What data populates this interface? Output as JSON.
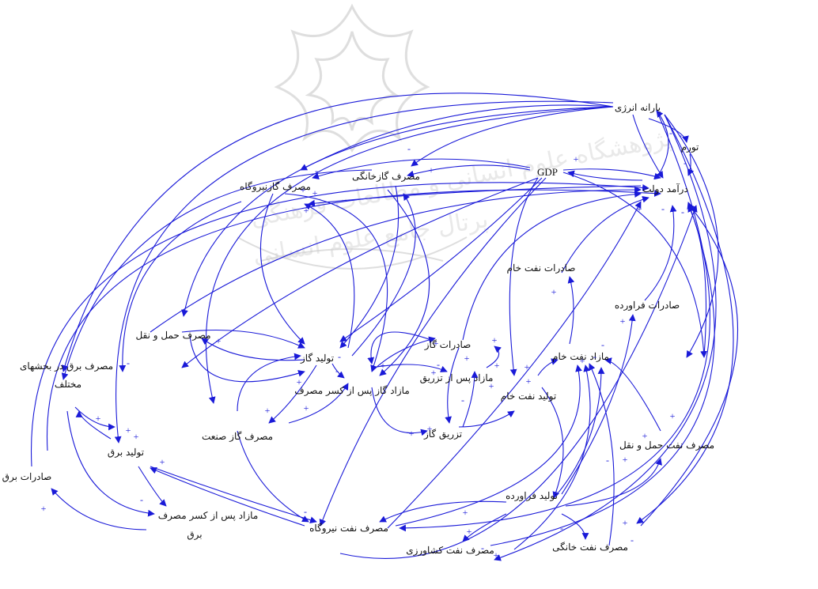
{
  "diagram": {
    "type": "causal-loop",
    "watermark": {
      "line1": "پژوهشگاه علوم انسانی و مطالعات فرهنگی",
      "line2": "پرتال جامع علوم انسانی"
    },
    "nodes": [
      {
        "id": "subsidy",
        "label": "یارانه انرژی"
      },
      {
        "id": "inflation",
        "label": "تورم"
      },
      {
        "id": "gdp",
        "label": "GDP"
      },
      {
        "id": "revenue",
        "label": "درآمد دولت"
      },
      {
        "id": "gas_power",
        "label": "مصرف گازنیروگاه"
      },
      {
        "id": "gas_home",
        "label": "مصرف گازخانگی"
      },
      {
        "id": "crude_export",
        "label": "صادرات نفت خام"
      },
      {
        "id": "product_export",
        "label": "صادرات فراورده"
      },
      {
        "id": "transport",
        "label": "مصرف حمل و نقل"
      },
      {
        "id": "gas_prod",
        "label": "تولید گاز"
      },
      {
        "id": "gas_export",
        "label": "صادرات گاز"
      },
      {
        "id": "crude_surplus",
        "label": "مازاد نفت خام"
      },
      {
        "id": "gas_surplus_inj",
        "label": "مازاد پس از تزریق"
      },
      {
        "id": "gas_surplus",
        "label": "مازاد گاز پس از کسر مصرف"
      },
      {
        "id": "crude_prod",
        "label": "تولید نفت خام"
      },
      {
        "id": "elec_sectors_1",
        "label": "مصرف برق در بخشهای"
      },
      {
        "id": "elec_sectors_2",
        "label": "مختلف"
      },
      {
        "id": "gas_injection",
        "label": "تزریق گاز"
      },
      {
        "id": "gas_industry",
        "label": "مصرف گاز صنعت"
      },
      {
        "id": "elec_prod",
        "label": "تولید برق"
      },
      {
        "id": "oil_transport",
        "label": "مصرف نفت حمل و نقل"
      },
      {
        "id": "elec_export",
        "label": "صادرات برق"
      },
      {
        "id": "product_prod",
        "label": "تولید فراورده"
      },
      {
        "id": "elec_surplus_1",
        "label": "مازاد پس از کسر مصرف"
      },
      {
        "id": "elec_surplus_2",
        "label": "برق"
      },
      {
        "id": "oil_power",
        "label": "مصرف نفت نیروگاه"
      },
      {
        "id": "oil_home",
        "label": "مصرف نفت خانگی"
      },
      {
        "id": "oil_agri",
        "label": "مصرف نفت کشاورزی"
      }
    ],
    "polarities": [
      "-",
      "-",
      "+",
      "-",
      "+",
      "+",
      "-",
      "+",
      "+",
      "-",
      "+",
      "+",
      "+",
      "-",
      "+",
      "-",
      "+",
      "+",
      "+",
      "+",
      "+",
      "+",
      "+",
      "+",
      "-",
      "+",
      "+",
      "+",
      "+",
      "-",
      "-",
      "+",
      "+",
      "+",
      "+",
      "-",
      "+",
      "+",
      "+",
      "-",
      "-",
      "+",
      "+",
      "-",
      "-",
      "+",
      "+",
      "+",
      "-",
      "+",
      "-",
      "+",
      "+",
      "-",
      "-",
      "+",
      "-"
    ],
    "colors": {
      "link": "#1a1ad8",
      "text": "#111111",
      "background": "#ffffff",
      "watermark": "#c8c8c8"
    }
  }
}
